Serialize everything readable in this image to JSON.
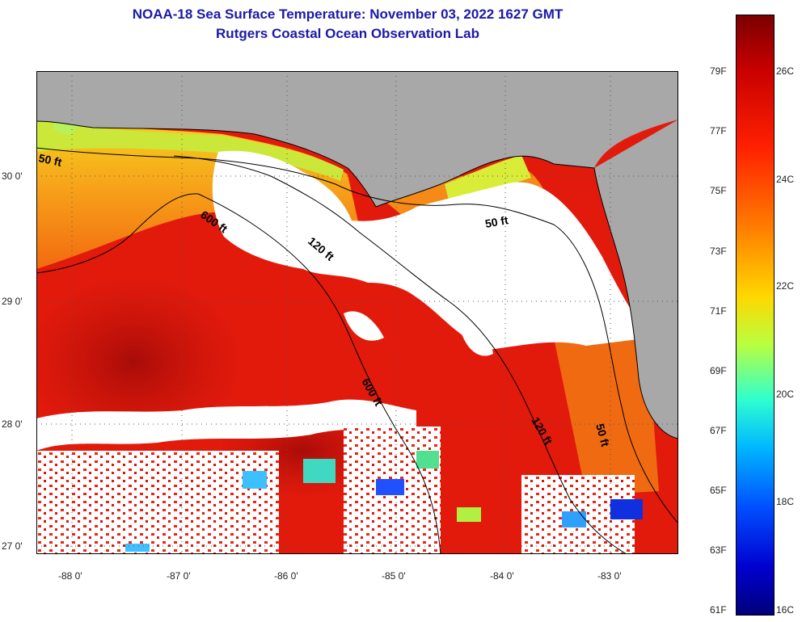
{
  "header": {
    "title": "NOAA-18 Sea Surface Temperature:  November 03, 2022 1627 GMT",
    "subtitle": "Rutgers Coastal Ocean Observation Lab"
  },
  "map": {
    "lon_range": [
      -88.3,
      -82.5
    ],
    "lat_range": [
      26.93,
      30.88
    ],
    "lon_ticks": [
      "-88 0'",
      "-87 0'",
      "-86 0'",
      "-85 0'",
      "-84 0'",
      "-83 0'"
    ],
    "lat_ticks": [
      "30 0'",
      "29 0'",
      "28 0'",
      "27 0'"
    ],
    "contours": [
      {
        "label": "50 ft",
        "where": "northwest shelf near Pensacola"
      },
      {
        "label": "600 ft",
        "where": "west of De Soto Canyon"
      },
      {
        "label": "120 ft",
        "where": "south of Apalachicola"
      },
      {
        "label": "50 ft",
        "where": "Big Bend shelf"
      },
      {
        "label": "600 ft",
        "where": "central shelf edge"
      },
      {
        "label": "120 ft",
        "where": "west Florida shelf"
      },
      {
        "label": "50 ft",
        "where": "off Tampa Bay"
      }
    ],
    "colors": {
      "land": "#a8a8a8",
      "cloud": "#ffffff",
      "warm": "#e21a0c",
      "deep": "#c4120a",
      "near_shore": "#f7a21a",
      "cool": "#bff04a"
    }
  },
  "colorbar": {
    "fahrenheit": [
      "79F",
      "77F",
      "75F",
      "73F",
      "71F",
      "69F",
      "67F",
      "65F",
      "63F",
      "61F"
    ],
    "celsius": [
      "26C",
      "24C",
      "22C",
      "20C",
      "18C",
      "16C"
    ],
    "min_f": 61,
    "max_f": 81
  }
}
